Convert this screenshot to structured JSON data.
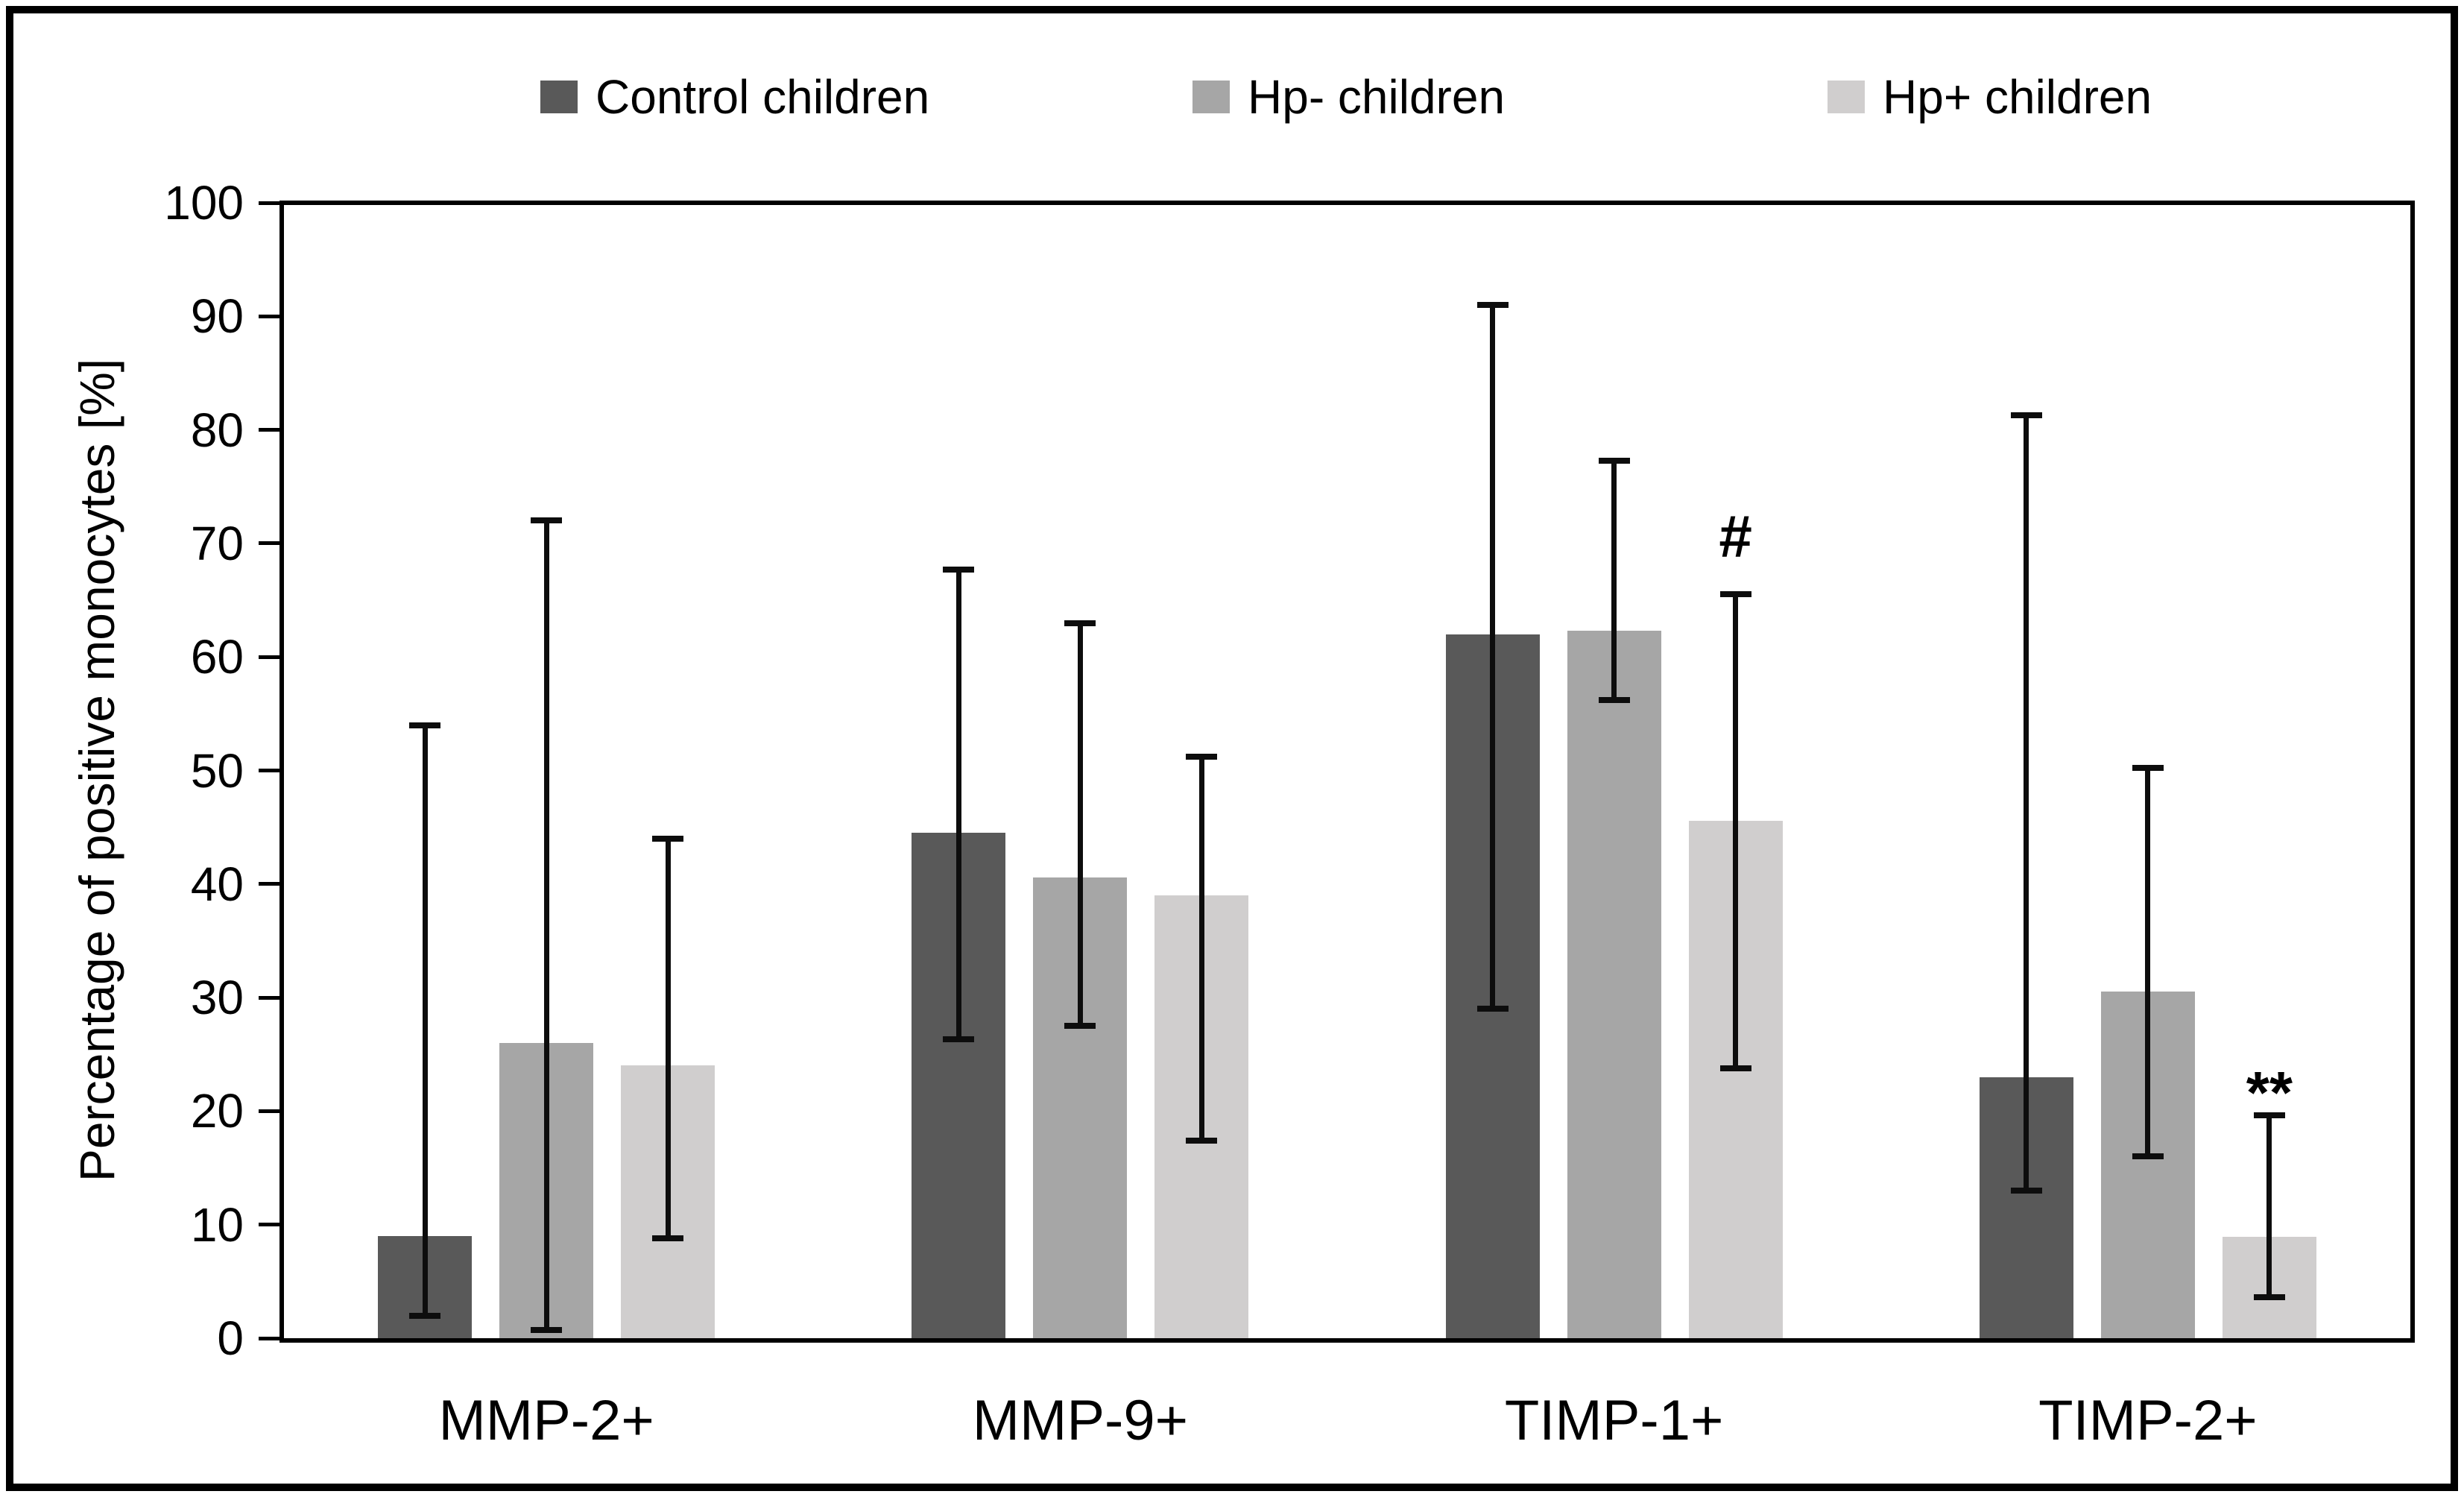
{
  "figure": {
    "background": "#ffffff",
    "frame_color": "#000000"
  },
  "legend": {
    "position": "top",
    "items": [
      {
        "label": "Control children",
        "color": "#595959"
      },
      {
        "label": "Hp- children",
        "color": "#a6a6a6"
      },
      {
        "label": "Hp+ children",
        "color": "#d0cece"
      }
    ]
  },
  "chart_data": {
    "type": "bar",
    "title": "",
    "xlabel": "",
    "ylabel": "Percentage of positive monocytes [%]",
    "ylim": [
      0,
      100
    ],
    "ytick_interval": 10,
    "yticks": [
      0,
      10,
      20,
      30,
      40,
      50,
      60,
      70,
      80,
      90,
      100
    ],
    "grid": false,
    "legend_position": "top",
    "error_bars": "asymmetric whiskers (absolute low/high values)",
    "categories": [
      "MMP-2+",
      "MMP-9+",
      "TIMP-1+",
      "TIMP-2+"
    ],
    "series": [
      {
        "name": "Control children",
        "color": "#595959",
        "values": [
          9.0,
          44.5,
          62.0,
          23.0
        ],
        "whisker_low": [
          2.0,
          26.3,
          29.0,
          13.0
        ],
        "whisker_high": [
          54.0,
          67.7,
          91.0,
          81.3
        ]
      },
      {
        "name": "Hp- children",
        "color": "#a6a6a6",
        "values": [
          26.0,
          40.6,
          62.3,
          30.5
        ],
        "whisker_low": [
          0.7,
          27.5,
          56.2,
          16.0
        ],
        "whisker_high": [
          72.0,
          63.0,
          77.3,
          50.2
        ]
      },
      {
        "name": "Hp+ children",
        "color": "#d0cece",
        "values": [
          24.0,
          39.0,
          45.6,
          8.9
        ],
        "whisker_low": [
          8.8,
          17.4,
          23.8,
          3.6
        ],
        "whisker_high": [
          44.0,
          51.2,
          65.5,
          19.6
        ]
      }
    ],
    "annotations": [
      {
        "text": "#",
        "category": "TIMP-1+",
        "series": "Hp+ children",
        "y": 69
      },
      {
        "text": "**",
        "category": "TIMP-2+",
        "series": "Hp+ children",
        "y": 20
      }
    ]
  }
}
